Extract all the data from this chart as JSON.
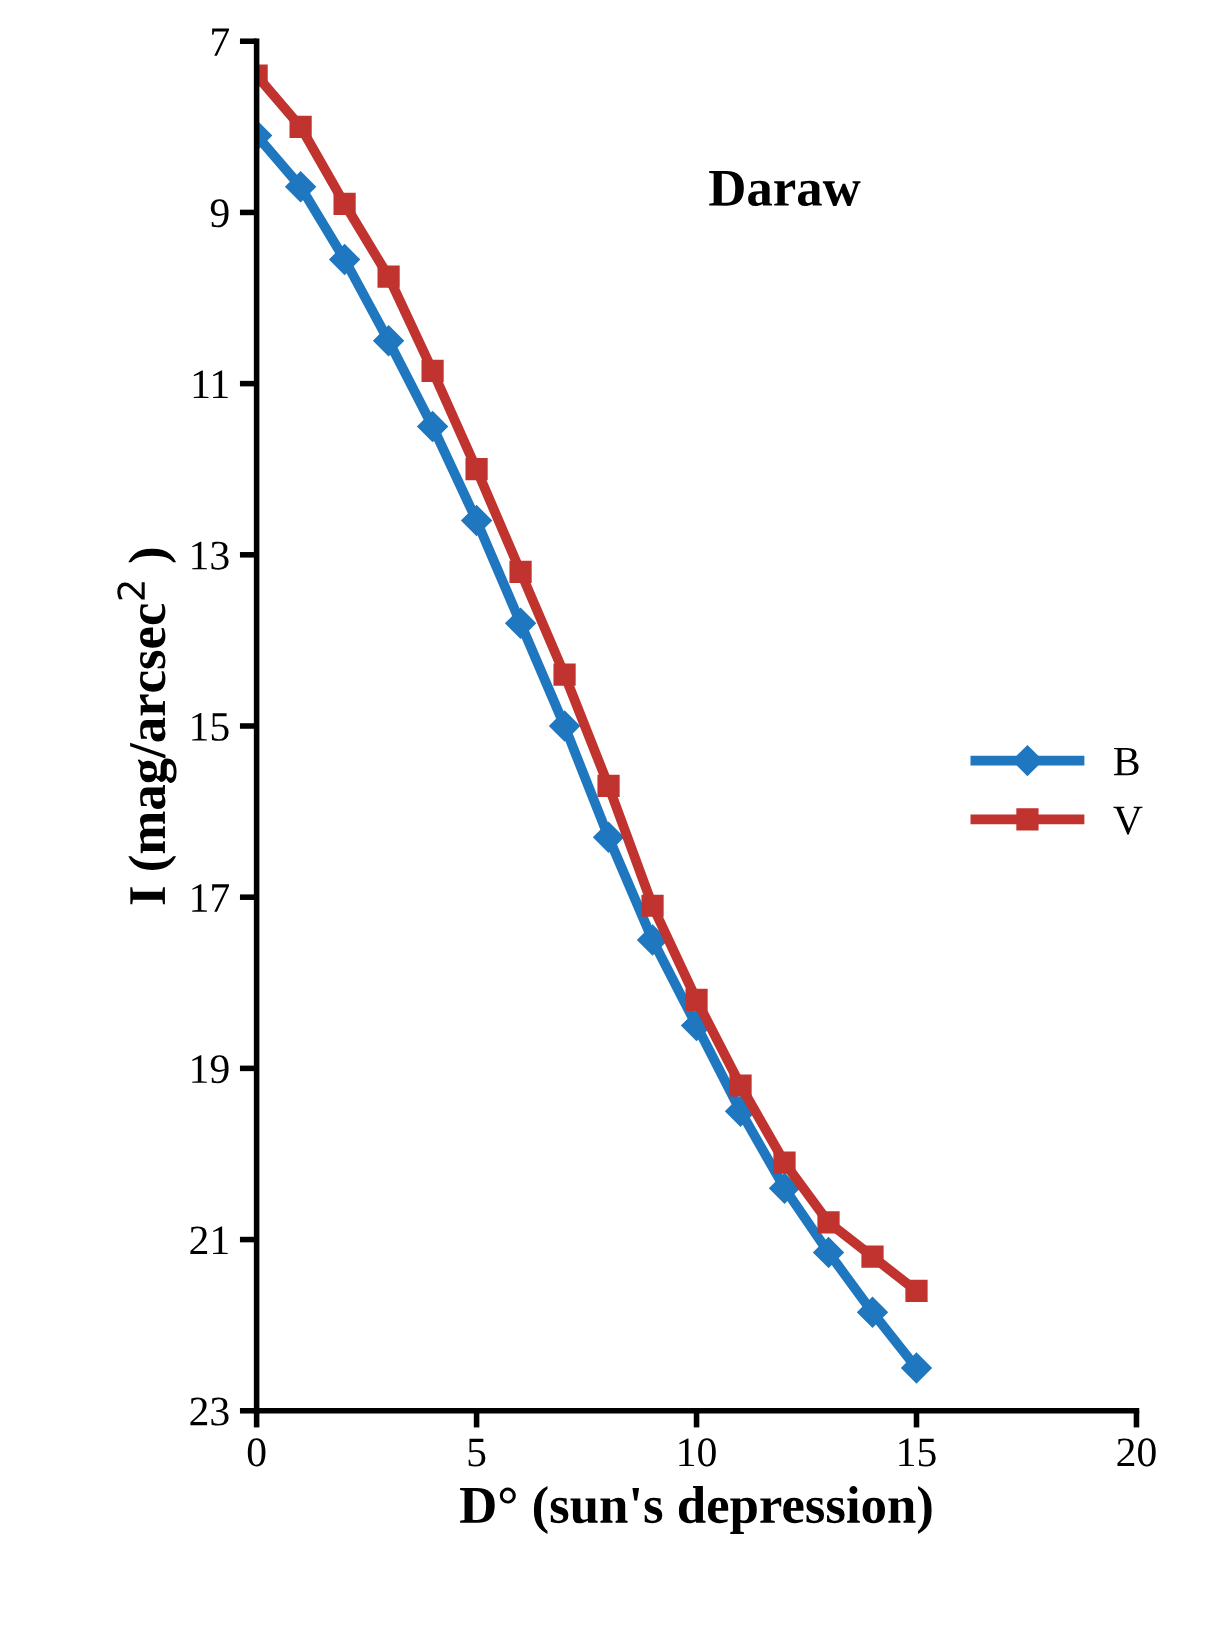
{
  "chart_data": {
    "type": "line",
    "title": "Daraw",
    "xlabel": "D° (sun's depression)",
    "ylabel": "I (mag/arcsec$^{2}$ )",
    "x": [
      0,
      1,
      2,
      3,
      4,
      5,
      6,
      7,
      8,
      9,
      10,
      11,
      12,
      13,
      14,
      15
    ],
    "series": [
      {
        "name": "B",
        "color": "#1f77c0",
        "marker": "diamond",
        "values": [
          8.1,
          8.7,
          9.55,
          10.5,
          11.5,
          12.6,
          13.8,
          15.0,
          16.3,
          17.5,
          18.5,
          19.5,
          20.4,
          21.15,
          21.85,
          22.5
        ]
      },
      {
        "name": "V",
        "color": "#c0332f",
        "marker": "square",
        "values": [
          7.4,
          8.0,
          8.9,
          9.75,
          10.85,
          12.0,
          13.2,
          14.4,
          15.7,
          17.1,
          18.2,
          19.2,
          20.1,
          20.8,
          21.2,
          21.6
        ]
      }
    ],
    "xlim": [
      0,
      20
    ],
    "xticks": [
      0,
      5,
      10,
      15,
      20
    ],
    "ylim": [
      23,
      7
    ],
    "yticks": [
      7,
      9,
      11,
      13,
      15,
      17,
      19,
      21,
      23
    ],
    "grid": false,
    "legend": "right",
    "line_style": "solid"
  }
}
